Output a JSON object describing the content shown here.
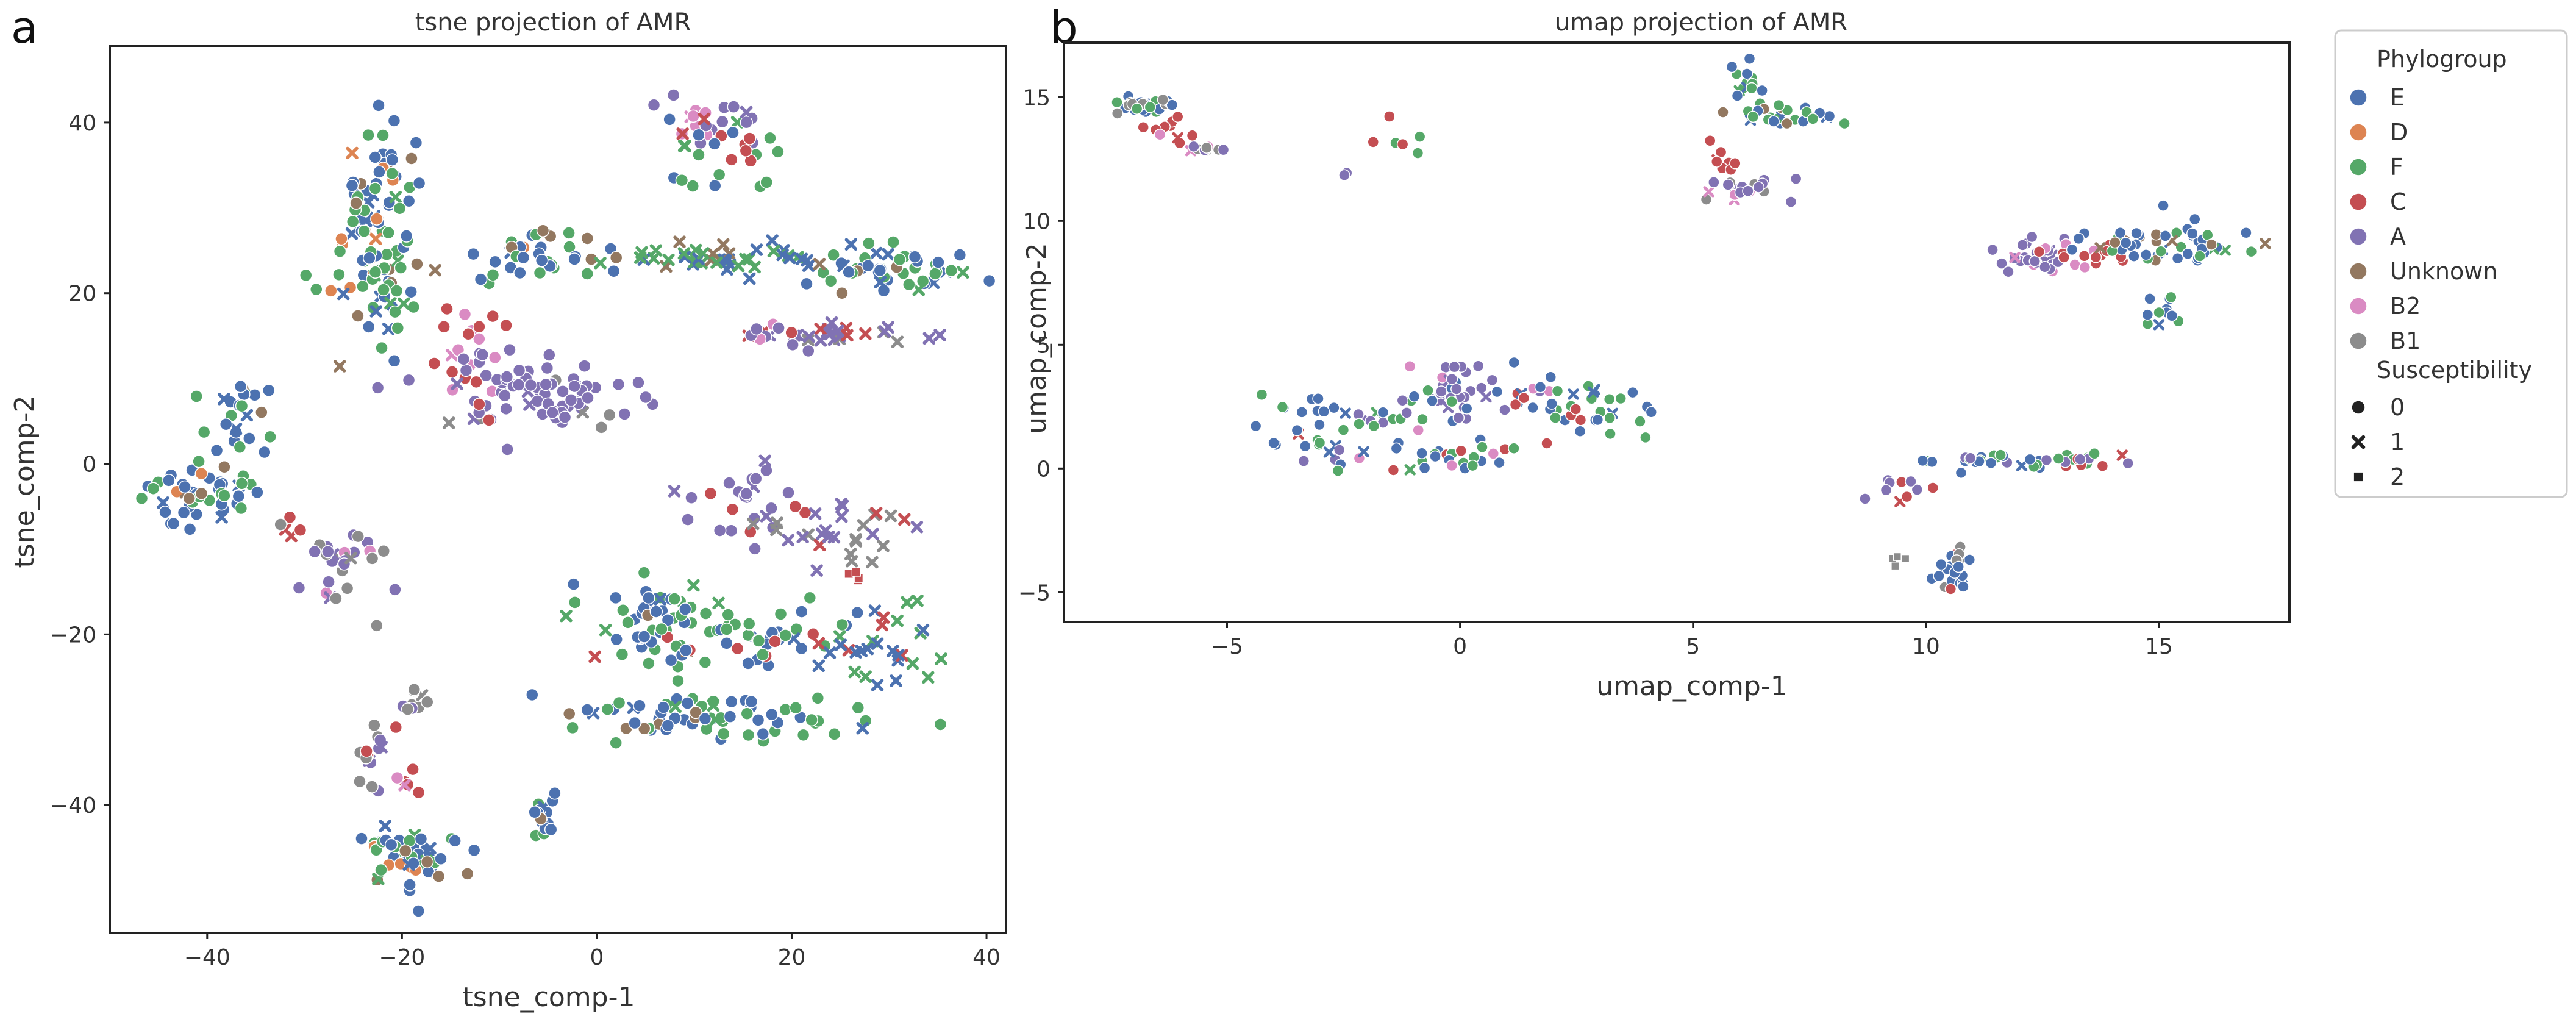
{
  "colors": {
    "E": "#4c72b0",
    "D": "#dd8452",
    "F": "#55a868",
    "C": "#c44e52",
    "A": "#8172b3",
    "Unknown": "#937860",
    "B2": "#da8bc3",
    "B1": "#8c8c8c"
  },
  "legend": {
    "hue_title": "Phylogroup",
    "hue_items": [
      "E",
      "D",
      "F",
      "C",
      "A",
      "Unknown",
      "B2",
      "B1"
    ],
    "style_title": "Susceptibility",
    "style_items": [
      {
        "label": "0",
        "marker": "circle"
      },
      {
        "label": "1",
        "marker": "x"
      },
      {
        "label": "2",
        "marker": "square"
      }
    ]
  },
  "chart_data": [
    {
      "panel": "a",
      "type": "scatter",
      "title": "tsne projection of AMR",
      "xlabel": "tsne_comp-1",
      "ylabel": "tsne_comp-2",
      "xlim": [
        -50,
        42
      ],
      "ylim": [
        -55,
        49
      ],
      "xticks": [
        -40,
        -20,
        0,
        20,
        40
      ],
      "yticks": [
        -40,
        -20,
        0,
        20,
        40
      ],
      "clusters": [
        {
          "x": -22,
          "y": 28,
          "sx": 2.2,
          "sy": 6,
          "n": 90,
          "mix": {
            "E": 0.6,
            "F": 0.25,
            "Unknown": 0.08,
            "D": 0.07
          }
        },
        {
          "x": -22,
          "y": 20,
          "sx": 2.5,
          "sy": 1.5,
          "n": 20,
          "mix": {
            "F": 0.6,
            "E": 0.2,
            "D": 0.2
          }
        },
        {
          "x": -7,
          "y": 24,
          "sx": 4,
          "sy": 1.3,
          "n": 40,
          "mix": {
            "E": 0.55,
            "F": 0.3,
            "Unknown": 0.1,
            "D": 0.05
          }
        },
        {
          "x": 12,
          "y": 40,
          "sx": 3,
          "sy": 1.5,
          "n": 20,
          "mix": {
            "A": 0.7,
            "B2": 0.2,
            "F": 0.1
          }
        },
        {
          "x": 13,
          "y": 36,
          "sx": 3,
          "sy": 2,
          "n": 25,
          "mix": {
            "F": 0.5,
            "C": 0.3,
            "E": 0.2
          }
        },
        {
          "x": 13,
          "y": 24,
          "sx": 6,
          "sy": 1,
          "n": 45,
          "mix": {
            "F": 0.45,
            "E": 0.4,
            "Unknown": 0.15
          },
          "marker": "x"
        },
        {
          "x": 30,
          "y": 22.5,
          "sx": 5.5,
          "sy": 1.3,
          "n": 50,
          "mix": {
            "E": 0.5,
            "F": 0.35,
            "Unknown": 0.15
          }
        },
        {
          "x": 25,
          "y": 15,
          "sx": 4.5,
          "sy": 0.6,
          "n": 25,
          "mix": {
            "A": 0.7,
            "B1": 0.2,
            "C": 0.1
          },
          "marker": "x"
        },
        {
          "x": 18,
          "y": 15,
          "sx": 2,
          "sy": 1,
          "n": 12,
          "mix": {
            "A": 0.6,
            "B2": 0.3,
            "C": 0.1
          }
        },
        {
          "x": -14,
          "y": 14,
          "sx": 2,
          "sy": 2.5,
          "n": 18,
          "mix": {
            "C": 0.7,
            "B2": 0.3
          }
        },
        {
          "x": -6,
          "y": 8,
          "sx": 5.5,
          "sy": 2.5,
          "n": 80,
          "mix": {
            "A": 0.9,
            "C": 0.05,
            "B1": 0.05
          }
        },
        {
          "x": -37,
          "y": 5,
          "sx": 2,
          "sy": 2.5,
          "n": 25,
          "mix": {
            "E": 0.65,
            "F": 0.25,
            "Unknown": 0.1
          }
        },
        {
          "x": -40,
          "y": -3,
          "sx": 3.5,
          "sy": 2,
          "n": 50,
          "mix": {
            "E": 0.6,
            "F": 0.3,
            "D": 0.05,
            "Unknown": 0.05
          }
        },
        {
          "x": -31,
          "y": -7,
          "sx": 1,
          "sy": 1,
          "n": 4,
          "mix": {
            "C": 1.0
          }
        },
        {
          "x": -25,
          "y": -11,
          "sx": 2.5,
          "sy": 2.5,
          "n": 30,
          "mix": {
            "A": 0.55,
            "B1": 0.25,
            "B2": 0.2
          }
        },
        {
          "x": 15,
          "y": -5,
          "sx": 4,
          "sy": 2,
          "n": 25,
          "mix": {
            "A": 0.8,
            "C": 0.2
          }
        },
        {
          "x": 25,
          "y": -8,
          "sx": 4,
          "sy": 2,
          "n": 30,
          "mix": {
            "B1": 0.45,
            "A": 0.45,
            "C": 0.1
          },
          "marker": "x"
        },
        {
          "x": 27,
          "y": -13,
          "sx": 1,
          "sy": 0.6,
          "n": 4,
          "mix": {
            "C": 1.0
          },
          "marker": "square"
        },
        {
          "x": 6,
          "y": -19,
          "sx": 4,
          "sy": 2.5,
          "n": 60,
          "mix": {
            "E": 0.5,
            "F": 0.4,
            "C": 0.05,
            "Unknown": 0.05
          }
        },
        {
          "x": 18,
          "y": -20,
          "sx": 4,
          "sy": 2,
          "n": 40,
          "mix": {
            "E": 0.5,
            "F": 0.4,
            "C": 0.1
          }
        },
        {
          "x": 29,
          "y": -22,
          "sx": 4,
          "sy": 2.5,
          "n": 30,
          "mix": {
            "F": 0.5,
            "E": 0.3,
            "C": 0.2
          },
          "marker": "x"
        },
        {
          "x": 12,
          "y": -30,
          "sx": 9,
          "sy": 1.2,
          "n": 70,
          "mix": {
            "E": 0.55,
            "F": 0.4,
            "Unknown": 0.05
          }
        },
        {
          "x": -19,
          "y": -28,
          "sx": 1.5,
          "sy": 1,
          "n": 10,
          "mix": {
            "A": 0.5,
            "B1": 0.5
          }
        },
        {
          "x": -22.5,
          "y": -34,
          "sx": 1.2,
          "sy": 2,
          "n": 15,
          "mix": {
            "A": 0.4,
            "B1": 0.5,
            "C": 0.1
          }
        },
        {
          "x": -20,
          "y": -38,
          "sx": 1,
          "sy": 1.3,
          "n": 6,
          "mix": {
            "C": 0.7,
            "B2": 0.3
          }
        },
        {
          "x": -19,
          "y": -46,
          "sx": 2.5,
          "sy": 2,
          "n": 50,
          "mix": {
            "E": 0.55,
            "F": 0.3,
            "Unknown": 0.1,
            "D": 0.05
          }
        },
        {
          "x": -5,
          "y": -41,
          "sx": 0.9,
          "sy": 1.3,
          "n": 15,
          "mix": {
            "E": 0.6,
            "F": 0.3,
            "Unknown": 0.1
          }
        }
      ]
    },
    {
      "panel": "b",
      "type": "scatter",
      "title": "umap projection of AMR",
      "xlabel": "umap_comp-1",
      "ylabel": "umap_comp-2",
      "xlim": [
        -8.5,
        17.8
      ],
      "ylim": [
        -6.2,
        17.2
      ],
      "xticks": [
        -5,
        0,
        5,
        10,
        15
      ],
      "yticks": [
        -5,
        0,
        5,
        10,
        15
      ],
      "clusters": [
        {
          "x": -6.8,
          "y": 14.6,
          "sx": 0.35,
          "sy": 0.2,
          "n": 30,
          "mix": {
            "E": 0.4,
            "F": 0.3,
            "B1": 0.3
          }
        },
        {
          "x": -6.2,
          "y": 13.6,
          "sx": 0.3,
          "sy": 0.25,
          "n": 10,
          "mix": {
            "C": 0.7,
            "B2": 0.3
          }
        },
        {
          "x": -5.5,
          "y": 12.9,
          "sx": 0.3,
          "sy": 0.12,
          "n": 10,
          "mix": {
            "B1": 0.4,
            "B2": 0.3,
            "A": 0.3
          }
        },
        {
          "x": -1.5,
          "y": 13.2,
          "sx": 0.25,
          "sy": 0.35,
          "n": 6,
          "mix": {
            "F": 0.5,
            "C": 0.5
          }
        },
        {
          "x": -2.4,
          "y": 11.8,
          "sx": 0.1,
          "sy": 0.1,
          "n": 2,
          "mix": {
            "A": 1.0
          }
        },
        {
          "x": 6.2,
          "y": 15.5,
          "sx": 0.2,
          "sy": 0.4,
          "n": 15,
          "mix": {
            "F": 0.6,
            "E": 0.4
          }
        },
        {
          "x": 7,
          "y": 14.2,
          "sx": 0.6,
          "sy": 0.2,
          "n": 25,
          "mix": {
            "E": 0.4,
            "F": 0.3,
            "Unknown": 0.3
          }
        },
        {
          "x": 5.7,
          "y": 12.3,
          "sx": 0.15,
          "sy": 0.3,
          "n": 8,
          "mix": {
            "C": 1.0
          }
        },
        {
          "x": 5.9,
          "y": 11.3,
          "sx": 0.45,
          "sy": 0.2,
          "n": 20,
          "mix": {
            "A": 0.6,
            "B1": 0.2,
            "B2": 0.2
          }
        },
        {
          "x": 12.4,
          "y": 8.5,
          "sx": 0.5,
          "sy": 0.35,
          "n": 30,
          "mix": {
            "A": 0.8,
            "B2": 0.2
          }
        },
        {
          "x": 13.8,
          "y": 8.7,
          "sx": 0.5,
          "sy": 0.25,
          "n": 15,
          "mix": {
            "C": 0.8,
            "B2": 0.2
          }
        },
        {
          "x": 15.3,
          "y": 9.2,
          "sx": 0.8,
          "sy": 0.45,
          "n": 55,
          "mix": {
            "E": 0.6,
            "F": 0.3,
            "Unknown": 0.1
          }
        },
        {
          "x": 15,
          "y": 6.5,
          "sx": 0.2,
          "sy": 0.35,
          "n": 12,
          "mix": {
            "E": 0.6,
            "F": 0.4
          }
        },
        {
          "x": -2.5,
          "y": 1.5,
          "sx": 1,
          "sy": 0.8,
          "n": 45,
          "mix": {
            "E": 0.4,
            "F": 0.4,
            "C": 0.1,
            "A": 0.1
          }
        },
        {
          "x": 0,
          "y": 3,
          "sx": 0.9,
          "sy": 0.8,
          "n": 40,
          "mix": {
            "A": 0.8,
            "E": 0.1,
            "B2": 0.1
          }
        },
        {
          "x": 2.2,
          "y": 2.5,
          "sx": 0.9,
          "sy": 0.6,
          "n": 40,
          "mix": {
            "F": 0.5,
            "E": 0.4,
            "C": 0.1
          }
        },
        {
          "x": 0,
          "y": 0.4,
          "sx": 0.9,
          "sy": 0.35,
          "n": 25,
          "mix": {
            "E": 0.4,
            "F": 0.3,
            "C": 0.15,
            "B2": 0.15
          }
        },
        {
          "x": 11.5,
          "y": 0.3,
          "sx": 0.8,
          "sy": 0.25,
          "n": 25,
          "mix": {
            "E": 0.4,
            "F": 0.4,
            "A": 0.2
          }
        },
        {
          "x": 13.5,
          "y": 0.4,
          "sx": 0.55,
          "sy": 0.25,
          "n": 15,
          "mix": {
            "F": 0.5,
            "A": 0.3,
            "C": 0.2
          }
        },
        {
          "x": 9.4,
          "y": -0.9,
          "sx": 0.3,
          "sy": 0.3,
          "n": 10,
          "mix": {
            "C": 0.5,
            "A": 0.5
          }
        },
        {
          "x": 10.6,
          "y": -4,
          "sx": 0.2,
          "sy": 0.5,
          "n": 25,
          "mix": {
            "E": 0.7,
            "C": 0.2,
            "B1": 0.1
          }
        },
        {
          "x": 9.4,
          "y": -3.8,
          "sx": 0.1,
          "sy": 0.2,
          "n": 4,
          "mix": {
            "B1": 0.5,
            "A": 0.5
          },
          "marker": "square"
        }
      ]
    }
  ]
}
